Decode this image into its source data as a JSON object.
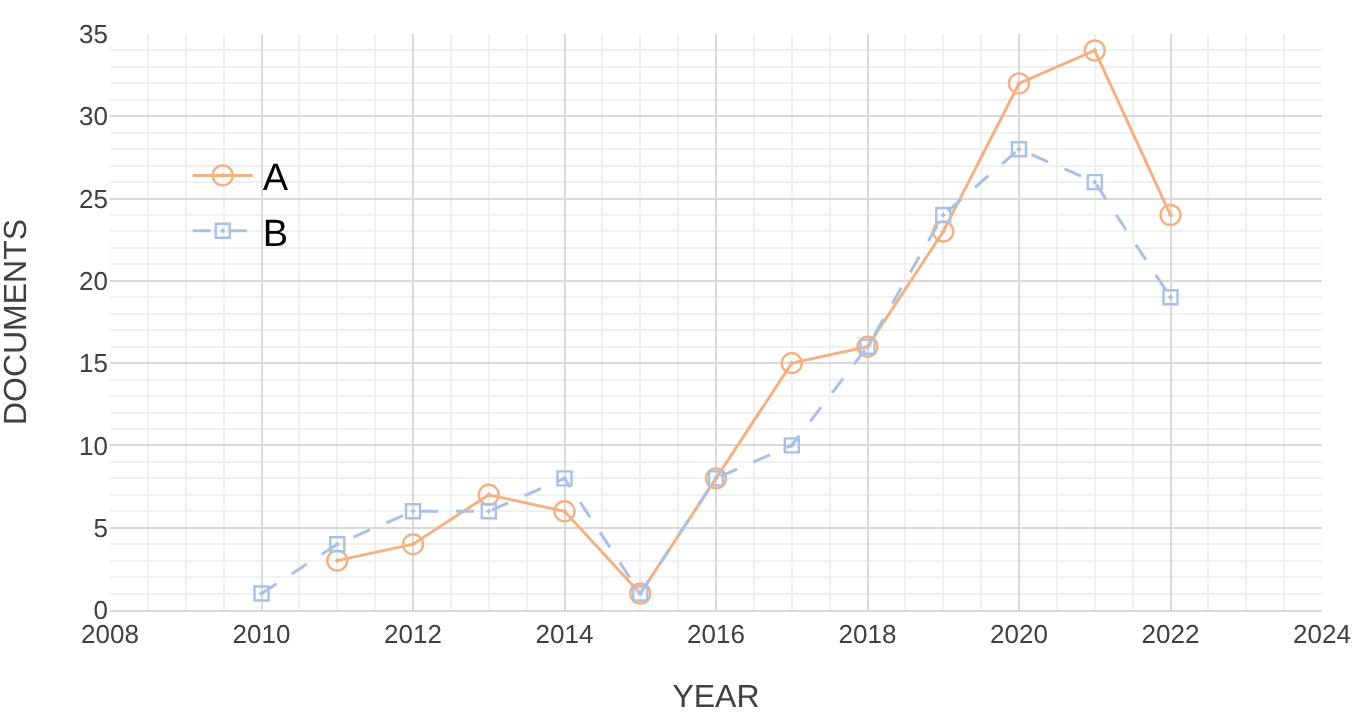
{
  "chart_data": {
    "type": "line",
    "xlabel": "YEAR",
    "ylabel": "DOCUMENTS",
    "xlim": [
      2008,
      2024
    ],
    "xticks": [
      2008,
      2010,
      2012,
      2014,
      2016,
      2018,
      2020,
      2022,
      2024
    ],
    "ylim": [
      0,
      35
    ],
    "yticks": [
      0,
      5,
      10,
      15,
      20,
      25,
      30,
      35
    ],
    "grid": true,
    "legend": "top left",
    "series": [
      {
        "name": "A",
        "color": "#f4b183",
        "marker": "circle",
        "line_style": "solid",
        "x": [
          2011,
          2012,
          2013,
          2014,
          2015,
          2016,
          2017,
          2018,
          2019,
          2020,
          2021,
          2022
        ],
        "values": [
          3,
          4,
          7,
          6,
          1,
          8,
          15,
          16,
          23,
          32,
          34,
          24
        ]
      },
      {
        "name": "B",
        "color": "#a9c1e6",
        "marker": "square",
        "line_style": "dashed",
        "x": [
          2010,
          2011,
          2012,
          2013,
          2014,
          2015,
          2016,
          2017,
          2018,
          2019,
          2020,
          2021,
          2022
        ],
        "values": [
          1,
          4,
          6,
          6,
          8,
          1,
          8,
          10,
          16,
          24,
          28,
          26,
          19
        ]
      }
    ]
  }
}
